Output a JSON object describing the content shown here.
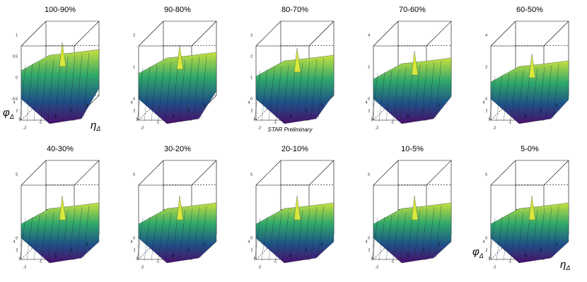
{
  "panels": [
    {
      "title": "100-90%",
      "zticks": [
        "1",
        "0.5",
        "0",
        "-0.5"
      ]
    },
    {
      "title": "90-80%",
      "zticks": [
        "2",
        "1",
        "0"
      ]
    },
    {
      "title": "80-70%",
      "zticks": [
        "3",
        "2",
        "1",
        "0"
      ]
    },
    {
      "title": "70-60%",
      "zticks": [
        "4",
        "2",
        "0"
      ]
    },
    {
      "title": "60-50%",
      "zticks": [
        "4",
        "2",
        "0"
      ]
    },
    {
      "title": "40-30%",
      "zticks": [
        "5",
        "0"
      ]
    },
    {
      "title": "30-20%",
      "zticks": [
        "5",
        "0"
      ]
    },
    {
      "title": "20-10%",
      "zticks": [
        "5",
        "0"
      ]
    },
    {
      "title": "10-5%",
      "zticks": [
        "5",
        "0"
      ]
    },
    {
      "title": "5-0%",
      "zticks": [
        "5",
        "0"
      ]
    }
  ],
  "xticks": [
    "-2",
    "-1",
    "0",
    "1",
    "2"
  ],
  "yticks": [
    "4",
    "2",
    "0"
  ],
  "x_label": {
    "symbol": "η",
    "subscript": "Δ"
  },
  "y_label": {
    "symbol": "φ",
    "subscript": "Δ"
  },
  "annotation": "STAR Preliminary"
}
